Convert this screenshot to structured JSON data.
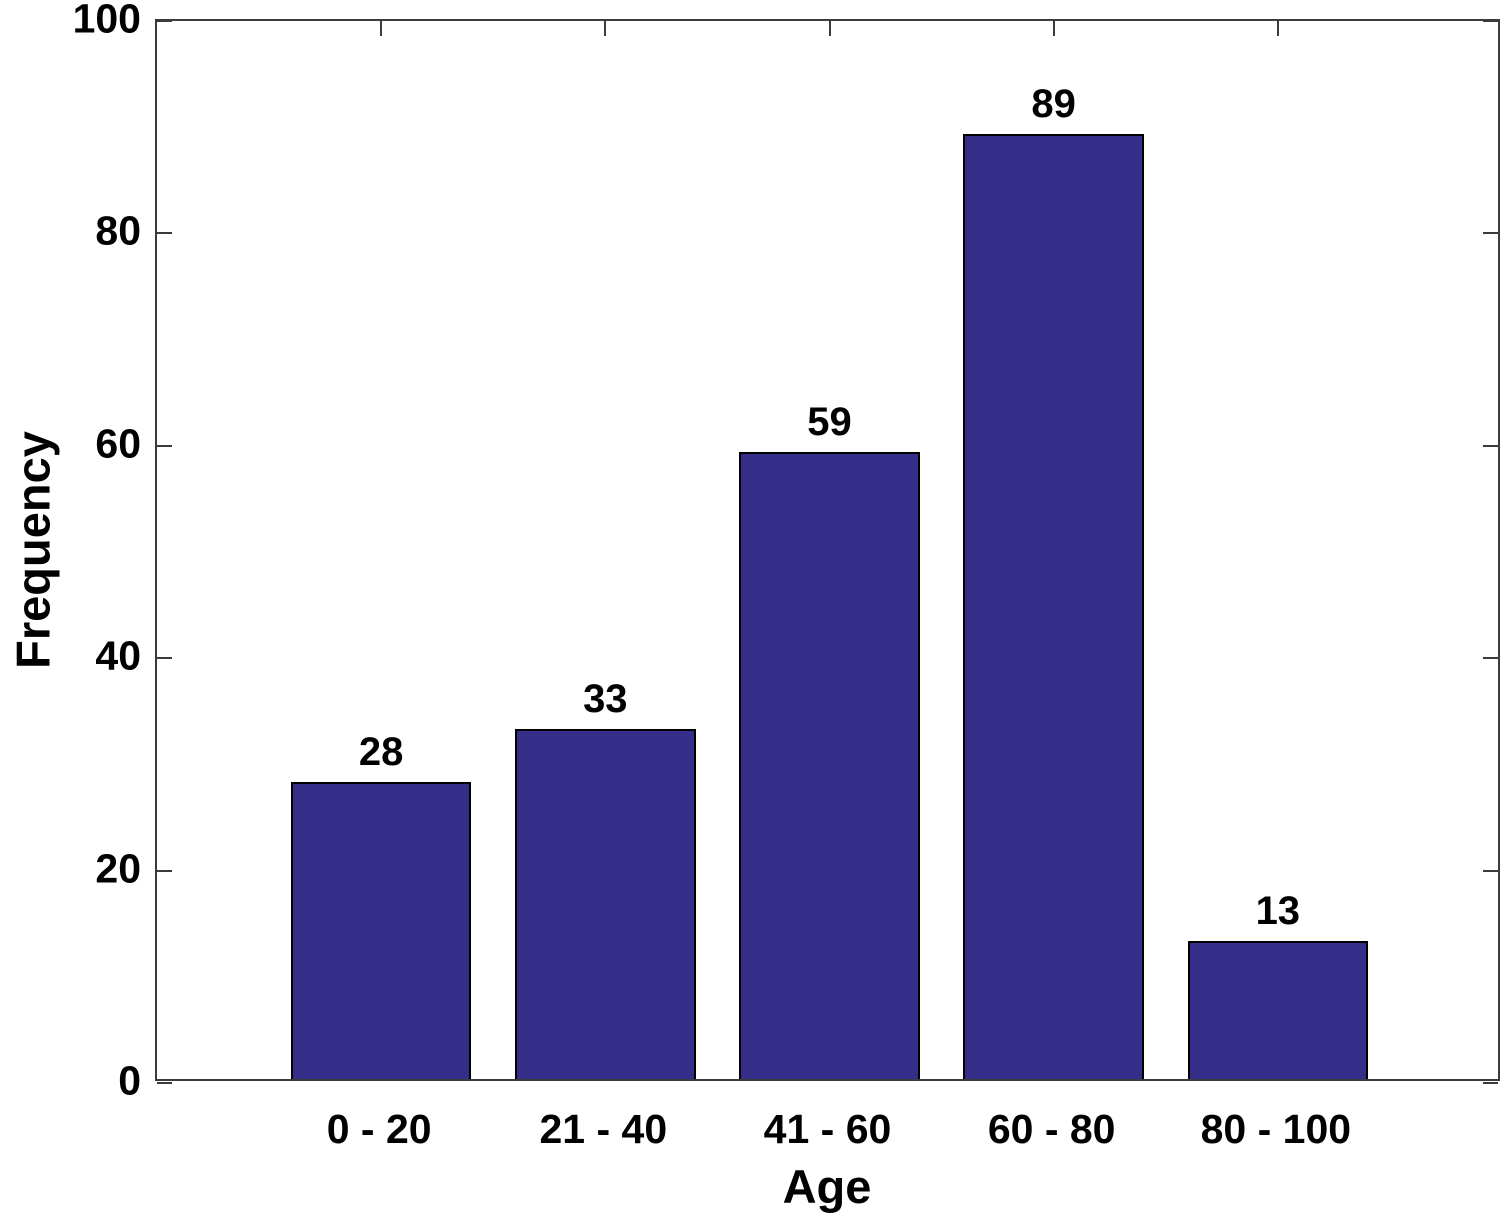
{
  "chart_data": {
    "type": "bar",
    "title": "",
    "xlabel": "Age",
    "ylabel": "Frequency",
    "categories": [
      "0 - 20",
      "21 - 40",
      "41 - 60",
      "60 - 80",
      "80 - 100"
    ],
    "values": [
      28,
      33,
      59,
      89,
      13
    ],
    "bar_value_labels": [
      "28",
      "33",
      "59",
      "89",
      "13"
    ],
    "ylim": [
      0,
      100
    ],
    "yticks": [
      0,
      20,
      40,
      60,
      80,
      100
    ],
    "grid": "off",
    "legend": "none",
    "bar_width_fraction": 0.805,
    "colors": {
      "bar_fill": "#352d8a",
      "bar_border": "#000000",
      "axis": "#3b3b3b",
      "text": "#000000",
      "background": "#ffffff"
    }
  }
}
